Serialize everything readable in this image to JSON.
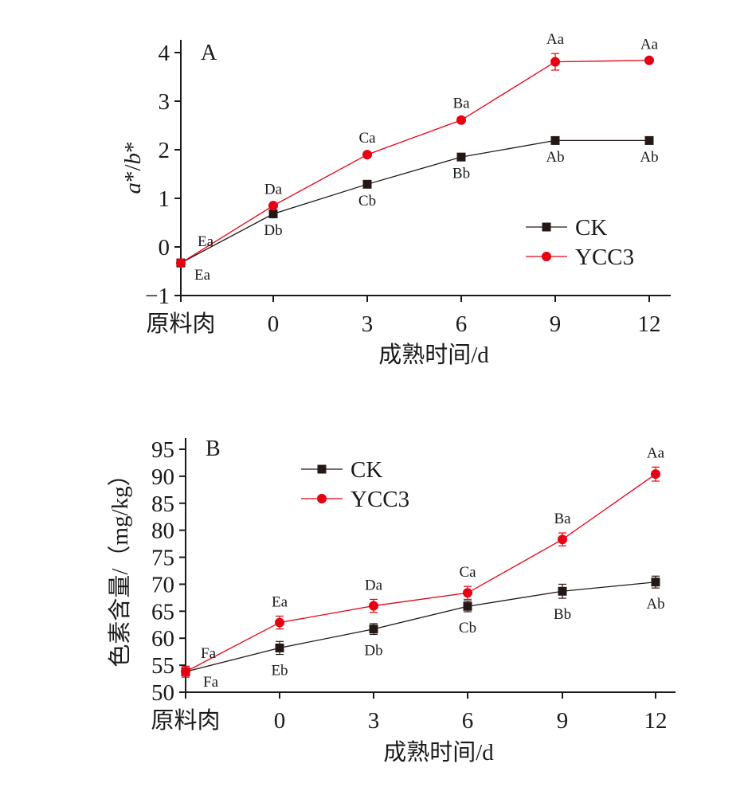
{
  "chart_data": [
    {
      "type": "line",
      "panel_label": "A",
      "categories": [
        "原料肉",
        "0",
        "3",
        "6",
        "9",
        "12"
      ],
      "xlabel": "成熟时间/d",
      "ylabel": "a*/b*",
      "ylabel_parts": [
        "a",
        "*/",
        "b",
        "*"
      ],
      "ylim": [
        -1,
        4
      ],
      "yticks": [
        -1,
        0,
        1,
        2,
        3,
        4
      ],
      "ytick_labels": [
        "−1",
        "0",
        "1",
        "2",
        "3",
        "4"
      ],
      "series": [
        {
          "name": "CK",
          "color": "#231815",
          "marker": "square",
          "values": [
            -0.33,
            0.68,
            1.29,
            1.85,
            2.19,
            2.19
          ],
          "errors": [
            0.03,
            0.04,
            0.04,
            0.04,
            0.04,
            0.04
          ],
          "labels": [
            "Ea",
            "Db",
            "Cb",
            "Bb",
            "Ab",
            "Ab"
          ],
          "label_pos": [
            "below",
            "below",
            "below",
            "below",
            "below",
            "below"
          ]
        },
        {
          "name": "YCC3",
          "color": "#e60012",
          "marker": "circle",
          "values": [
            -0.33,
            0.85,
            1.9,
            2.61,
            3.81,
            3.84
          ],
          "errors": [
            0.03,
            0.04,
            0.05,
            0.05,
            0.17,
            0.04
          ],
          "labels": [
            "Ea",
            "Da",
            "Ca",
            "Ba",
            "Aa",
            "Aa"
          ],
          "label_pos": [
            "above",
            "above",
            "above",
            "above",
            "above",
            "above"
          ]
        }
      ],
      "legend_position": "bottom-right"
    },
    {
      "type": "line",
      "panel_label": "B",
      "categories": [
        "原料肉",
        "0",
        "3",
        "6",
        "9",
        "12"
      ],
      "xlabel": "成熟时间/d",
      "ylabel": "色素含量/（mg/kg）",
      "ylim": [
        50,
        95
      ],
      "yticks": [
        50,
        55,
        60,
        65,
        70,
        75,
        80,
        85,
        90,
        95
      ],
      "ytick_labels": [
        "50",
        "55",
        "60",
        "65",
        "70",
        "75",
        "80",
        "85",
        "90",
        "95"
      ],
      "series": [
        {
          "name": "CK",
          "color": "#231815",
          "marker": "square",
          "values": [
            53.8,
            58.2,
            61.7,
            65.9,
            68.7,
            70.4
          ],
          "errors": [
            1.0,
            1.2,
            1.0,
            1.0,
            1.3,
            1.1
          ],
          "labels": [
            "Fa",
            "Eb",
            "Db",
            "Cb",
            "Bb",
            "Ab"
          ],
          "label_pos": [
            "below",
            "below",
            "below",
            "below",
            "below",
            "below"
          ]
        },
        {
          "name": "YCC3",
          "color": "#e60012",
          "marker": "circle",
          "values": [
            53.8,
            62.9,
            66.0,
            68.4,
            78.3,
            90.4
          ],
          "errors": [
            1.0,
            1.2,
            1.2,
            1.2,
            1.2,
            1.3
          ],
          "labels": [
            "Fa",
            "Ea",
            "Da",
            "Ca",
            "Ba",
            "Aa"
          ],
          "label_pos": [
            "above",
            "above",
            "above",
            "above",
            "above",
            "above"
          ]
        }
      ],
      "legend_position": "top-left"
    }
  ]
}
